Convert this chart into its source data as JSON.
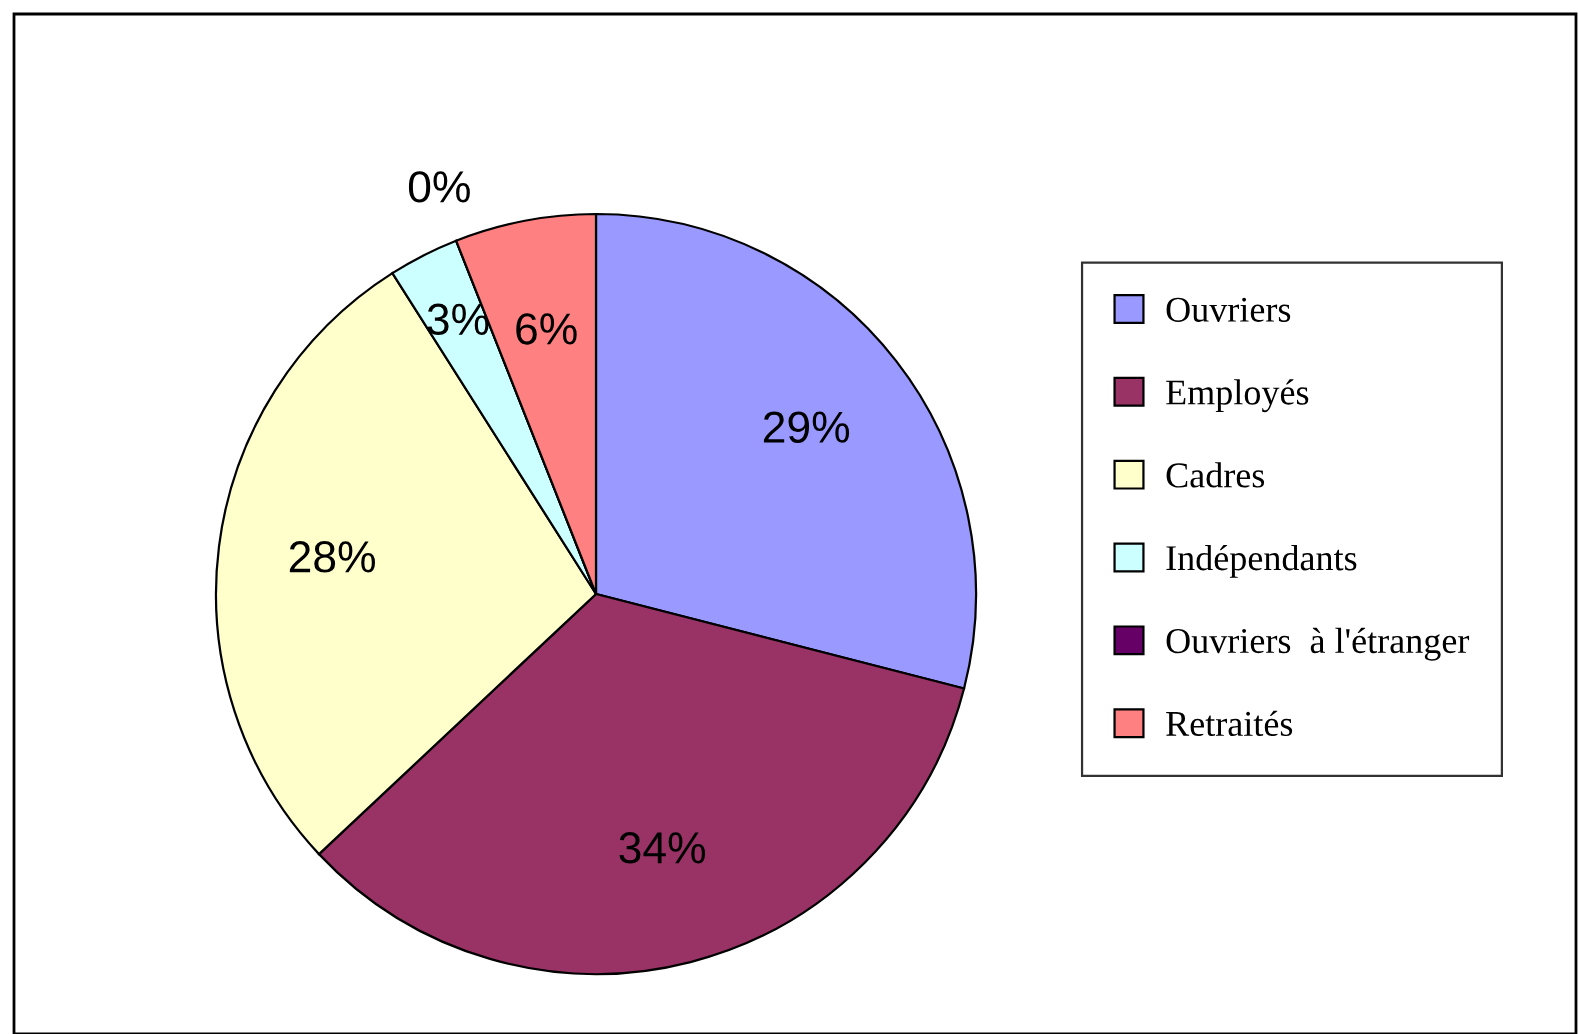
{
  "chart_data": {
    "type": "pie",
    "categories": [
      "Ouvriers",
      "Employés",
      "Cadres",
      "Indépendants",
      "Ouvriers  à l'étranger",
      "Retraités"
    ],
    "values": [
      29,
      34,
      28,
      3,
      0,
      6
    ],
    "colors": [
      "#9999ff",
      "#993366",
      "#ffffcc",
      "#ccffff",
      "#660066",
      "#ff8080"
    ],
    "value_labels": [
      "29%",
      "34%",
      "28%",
      "3%",
      "0%",
      "6%"
    ],
    "legend": "right"
  }
}
